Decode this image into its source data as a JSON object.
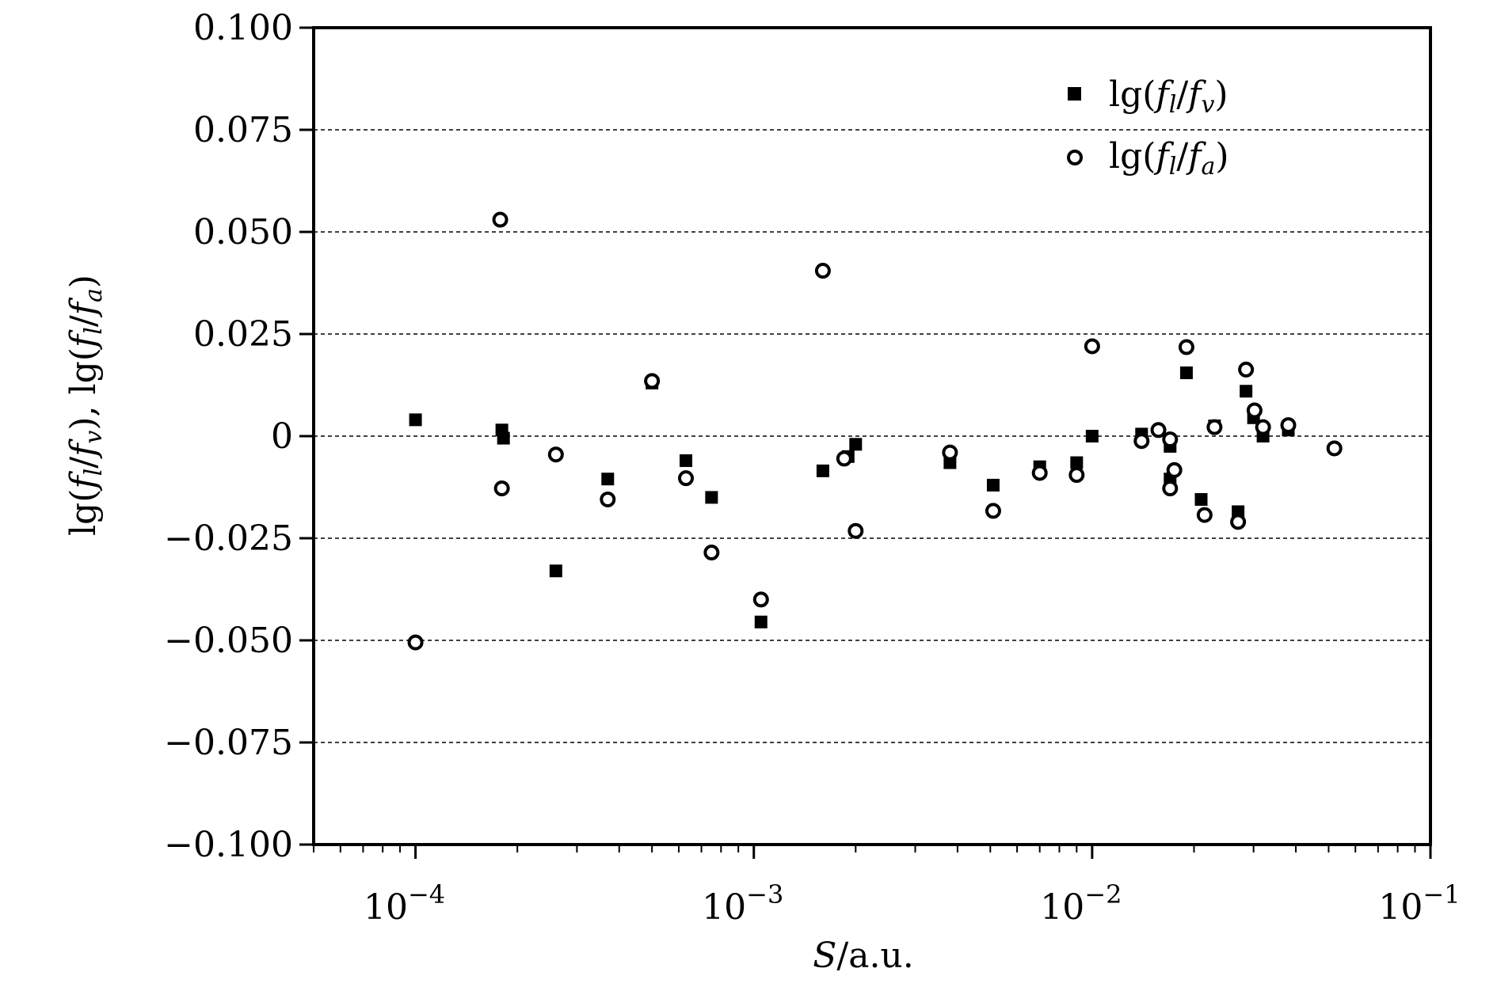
{
  "chart_data": {
    "type": "scatter",
    "xscale": "log",
    "xlim": [
      5e-05,
      0.1
    ],
    "ylim": [
      -0.1,
      0.1
    ],
    "xlabel": "S/a.u.",
    "ylabel": "lg(f_l/f_v), lg(f_l/f_a)",
    "grid": "horizontal dashed",
    "legend_position": "top-right",
    "x_ticks": [
      {
        "value": 0.0001,
        "label": "10",
        "exp": "−4"
      },
      {
        "value": 0.001,
        "label": "10",
        "exp": "−3"
      },
      {
        "value": 0.01,
        "label": "10",
        "exp": "−2"
      },
      {
        "value": 0.1,
        "label": "10",
        "exp": "−1"
      }
    ],
    "y_ticks": [
      {
        "value": 0.1,
        "label": "0.100"
      },
      {
        "value": 0.075,
        "label": "0.075"
      },
      {
        "value": 0.05,
        "label": "0.050"
      },
      {
        "value": 0.025,
        "label": "0.025"
      },
      {
        "value": 0,
        "label": "0"
      },
      {
        "value": -0.025,
        "label": "−0.025"
      },
      {
        "value": -0.05,
        "label": "−0.050"
      },
      {
        "value": -0.075,
        "label": "−0.075"
      },
      {
        "value": -0.1,
        "label": "−0.100"
      }
    ],
    "series": [
      {
        "name": "lg(f_l/f_v)",
        "marker": "filled-square",
        "points": [
          [
            0.0001,
            0.004
          ],
          [
            0.00018,
            0.0015
          ],
          [
            0.000182,
            -0.0005
          ],
          [
            0.00026,
            -0.033
          ],
          [
            0.00037,
            -0.0105
          ],
          [
            0.0005,
            0.013
          ],
          [
            0.00063,
            -0.006
          ],
          [
            0.00075,
            -0.015
          ],
          [
            0.00105,
            -0.0455
          ],
          [
            0.0016,
            -0.0085
          ],
          [
            0.0019,
            -0.005
          ],
          [
            0.002,
            -0.002
          ],
          [
            0.0038,
            -0.0065
          ],
          [
            0.0051,
            -0.012
          ],
          [
            0.007,
            -0.0075
          ],
          [
            0.009,
            -0.0065
          ],
          [
            0.01,
            0.0
          ],
          [
            0.014,
            0.0005
          ],
          [
            0.017,
            -0.0025
          ],
          [
            0.017,
            -0.0105
          ],
          [
            0.019,
            0.0155
          ],
          [
            0.021,
            -0.0155
          ],
          [
            0.023,
            0.0025
          ],
          [
            0.027,
            -0.0185
          ],
          [
            0.0285,
            0.011
          ],
          [
            0.03,
            0.0045
          ],
          [
            0.032,
            0.0
          ],
          [
            0.038,
            0.0015
          ]
        ]
      },
      {
        "name": "lg(f_l/f_a)",
        "marker": "open-circle",
        "points": [
          [
            0.0001,
            -0.0505
          ],
          [
            0.000178,
            0.053
          ],
          [
            0.00018,
            -0.0128
          ],
          [
            0.00026,
            -0.0045
          ],
          [
            0.00037,
            -0.0155
          ],
          [
            0.0005,
            0.0135
          ],
          [
            0.00063,
            -0.0103
          ],
          [
            0.00075,
            -0.0285
          ],
          [
            0.00105,
            -0.04
          ],
          [
            0.0016,
            0.0405
          ],
          [
            0.00185,
            -0.0055
          ],
          [
            0.002,
            -0.0232
          ],
          [
            0.0038,
            -0.004
          ],
          [
            0.0051,
            -0.0183
          ],
          [
            0.007,
            -0.009
          ],
          [
            0.009,
            -0.0095
          ],
          [
            0.01,
            0.022
          ],
          [
            0.014,
            -0.0012
          ],
          [
            0.0157,
            0.0015
          ],
          [
            0.017,
            -0.0008
          ],
          [
            0.017,
            -0.0128
          ],
          [
            0.0175,
            -0.0083
          ],
          [
            0.019,
            0.0218
          ],
          [
            0.0215,
            -0.0193
          ],
          [
            0.023,
            0.0022
          ],
          [
            0.027,
            -0.021
          ],
          [
            0.0285,
            0.0163
          ],
          [
            0.0302,
            0.0063
          ],
          [
            0.032,
            0.0022
          ],
          [
            0.038,
            0.0027
          ],
          [
            0.052,
            -0.003
          ]
        ]
      }
    ]
  }
}
